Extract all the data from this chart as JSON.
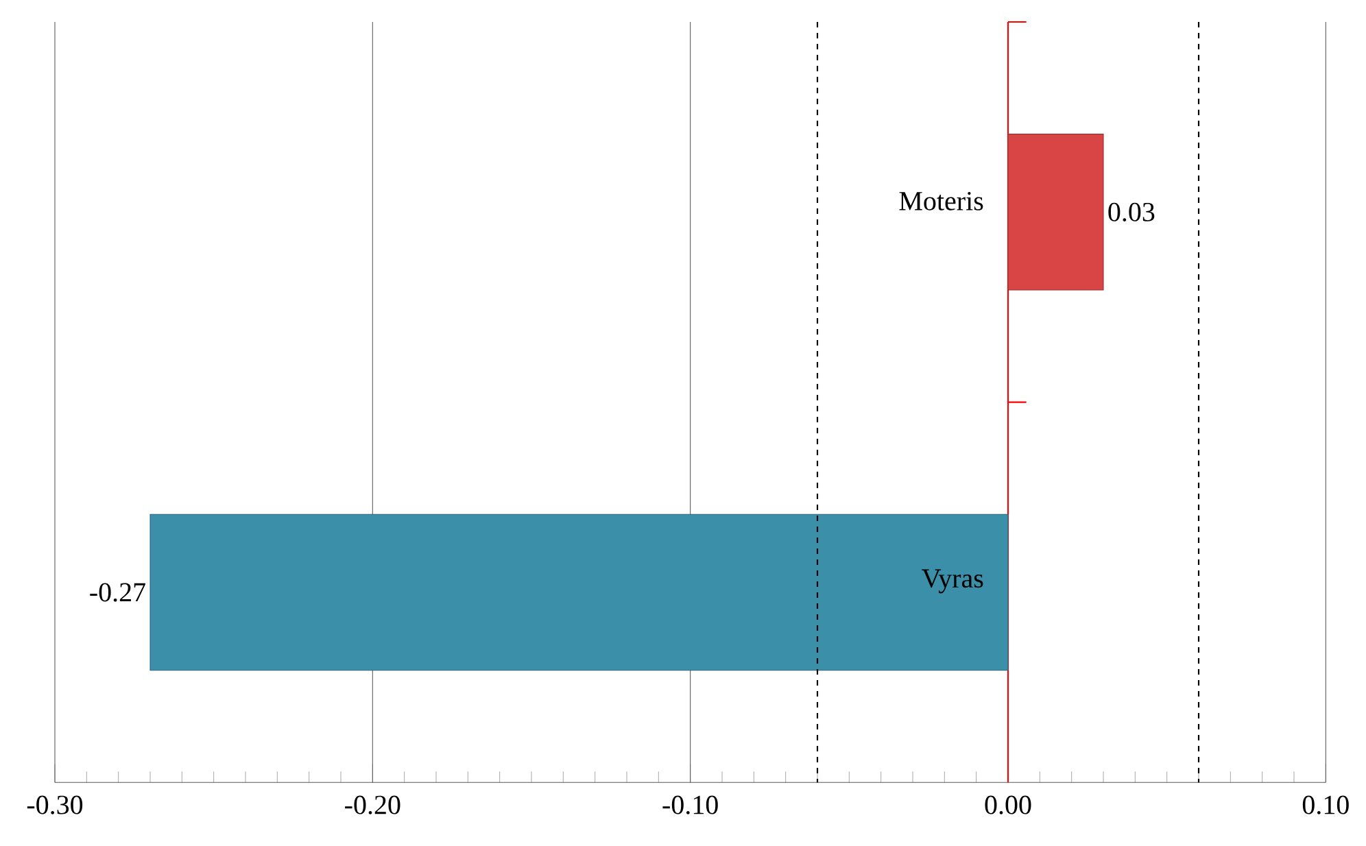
{
  "chart_data": {
    "type": "bar",
    "orientation": "horizontal",
    "categories": [
      "Moteris",
      "Vyras"
    ],
    "values": [
      0.03,
      -0.27
    ],
    "colors": [
      "#d94545",
      "#3b8fa8"
    ],
    "data_labels": true,
    "xlim": [
      -0.3,
      0.1
    ],
    "xticks": [
      {
        "value": -0.3,
        "label": "-0.30"
      },
      {
        "value": -0.2,
        "label": "-0.20"
      },
      {
        "value": -0.1,
        "label": "-0.10"
      },
      {
        "value": 0,
        "label": "0.00"
      },
      {
        "value": 0.1,
        "label": "0.10"
      }
    ],
    "grid": "x",
    "ref_lines": [
      {
        "axis": "x",
        "value": -0.06,
        "color": "#000000",
        "line_style": "dashed"
      },
      {
        "axis": "x",
        "value": 0.06,
        "color": "#000000",
        "line_style": "dashed"
      }
    ]
  }
}
